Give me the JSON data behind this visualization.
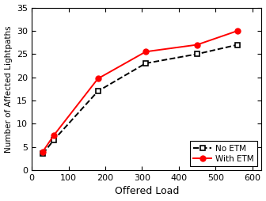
{
  "no_etm_x": [
    30,
    60,
    180,
    310,
    450,
    560
  ],
  "no_etm_y": [
    3.5,
    6.5,
    17,
    23,
    25,
    27
  ],
  "with_etm_x": [
    30,
    60,
    180,
    310,
    450,
    560
  ],
  "with_etm_y": [
    4,
    7.5,
    19.7,
    25.5,
    27,
    30
  ],
  "xlabel": "Offered Load",
  "ylabel": "Number of Affected Lightpaths",
  "xlim": [
    0,
    625
  ],
  "ylim": [
    0,
    35
  ],
  "xticks": [
    0,
    100,
    200,
    300,
    400,
    500,
    600
  ],
  "yticks": [
    0,
    5,
    10,
    15,
    20,
    25,
    30,
    35
  ],
  "legend_no_etm": "No ETM",
  "legend_with_etm": "With ETM",
  "no_etm_color": "black",
  "with_etm_color": "red",
  "bg_color": "#ffffff"
}
